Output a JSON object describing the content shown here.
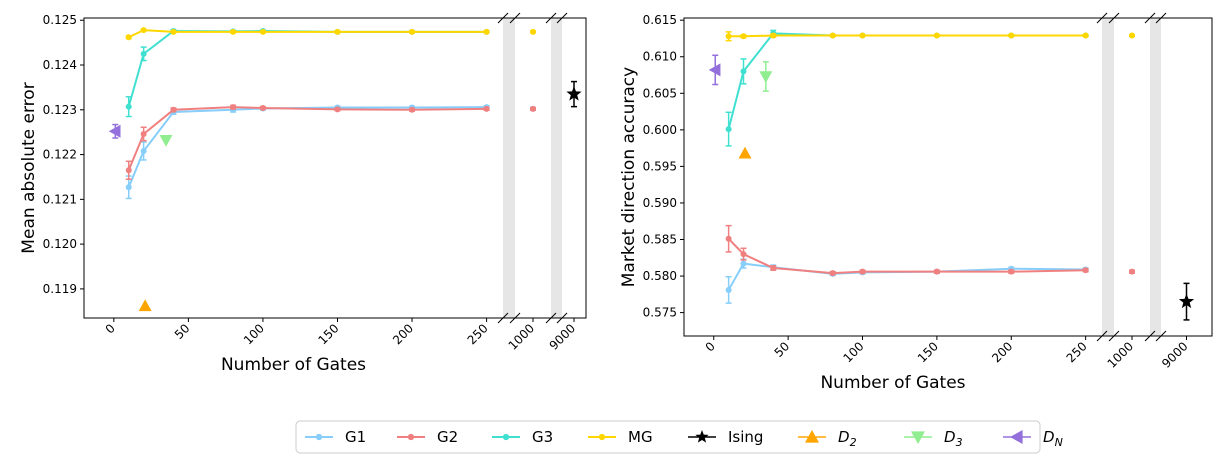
{
  "chart_data": [
    {
      "type": "line",
      "xlabel": "Number of Gates",
      "ylabel": "Mean absolute error",
      "ylim": [
        0.11835,
        0.12505
      ],
      "yticks": [
        0.119,
        0.12,
        0.121,
        0.122,
        0.123,
        0.124,
        0.125
      ],
      "ytick_labels": [
        "0.119",
        "0.120",
        "0.121",
        "0.122",
        "0.123",
        "0.124",
        "0.125"
      ],
      "xticks": [
        0,
        50,
        100,
        150,
        200,
        250
      ],
      "xtick_labels": [
        "0",
        "50",
        "100",
        "150",
        "200",
        "250"
      ],
      "broken_xtick_labels": [
        "1000",
        "9000"
      ],
      "series": [
        {
          "name": "G1",
          "x": [
            10,
            20,
            40,
            80,
            100,
            150,
            200,
            250,
            1000
          ],
          "y": [
            0.12127,
            0.12208,
            0.12295,
            0.123,
            0.12303,
            0.12305,
            0.12305,
            0.12306,
            0.12302
          ],
          "err": [
            0.00025,
            0.0002,
            5e-05,
            5e-05,
            3e-05,
            3e-05,
            3e-05,
            3e-05,
            3e-05
          ]
        },
        {
          "name": "G2",
          "x": [
            10,
            20,
            40,
            80,
            100,
            150,
            200,
            250,
            1000
          ],
          "y": [
            0.12165,
            0.12246,
            0.123,
            0.12306,
            0.12304,
            0.12301,
            0.123,
            0.12302,
            0.12302
          ],
          "err": [
            0.0002,
            0.00015,
            4e-05,
            4e-05,
            3e-05,
            3e-05,
            3e-05,
            3e-05,
            3e-05
          ]
        },
        {
          "name": "G3",
          "x": [
            10,
            20,
            40,
            80,
            100,
            150,
            200,
            250
          ],
          "y": [
            0.12307,
            0.12425,
            0.12476,
            0.12475,
            0.12476,
            0.12474,
            0.12474,
            0.12474
          ],
          "err": [
            0.00022,
            0.00015,
            3e-05,
            2e-05,
            2e-05,
            2e-05,
            2e-05,
            2e-05
          ]
        },
        {
          "name": "MG",
          "x": [
            10,
            20,
            40,
            80,
            100,
            150,
            200,
            250,
            1000
          ],
          "y": [
            0.12462,
            0.12478,
            0.12474,
            0.12474,
            0.12474,
            0.12474,
            0.12474,
            0.12474,
            0.12474
          ],
          "err": [
            3e-05,
            2e-05,
            2e-05,
            2e-05,
            2e-05,
            2e-05,
            2e-05,
            2e-05,
            2e-05
          ]
        }
      ],
      "markers": [
        {
          "name": "Ising",
          "x": 9000,
          "y": 0.12335,
          "err": 0.00028
        },
        {
          "name": "D_2",
          "x": 21,
          "y": 0.11862
        },
        {
          "name": "D_3",
          "x": 35,
          "y": 0.12232
        },
        {
          "name": "D_N",
          "x": 1,
          "y": 0.12252,
          "err": 0.00015
        }
      ]
    },
    {
      "type": "line",
      "xlabel": "Number of Gates",
      "ylabel": "Market direction accuracy",
      "ylim": [
        0.5718,
        0.6153
      ],
      "yticks": [
        0.575,
        0.58,
        0.585,
        0.59,
        0.595,
        0.6,
        0.605,
        0.61,
        0.615
      ],
      "ytick_labels": [
        "0.575",
        "0.580",
        "0.585",
        "0.590",
        "0.595",
        "0.600",
        "0.605",
        "0.610",
        "0.615"
      ],
      "xticks": [
        0,
        50,
        100,
        150,
        200,
        250
      ],
      "xtick_labels": [
        "0",
        "50",
        "100",
        "150",
        "200",
        "250"
      ],
      "broken_xtick_labels": [
        "1000",
        "9000"
      ],
      "series": [
        {
          "name": "G1",
          "x": [
            10,
            20,
            40,
            80,
            100,
            150,
            200,
            250
          ],
          "y": [
            0.5781,
            0.5817,
            0.5812,
            0.5803,
            0.5805,
            0.5806,
            0.581,
            0.5809
          ],
          "err": [
            0.0018,
            0.0006,
            0.0003,
            0.0002,
            0.0002,
            0.0002,
            0.0002,
            0.0002
          ]
        },
        {
          "name": "G2",
          "x": [
            10,
            20,
            40,
            80,
            100,
            150,
            200,
            250,
            1000
          ],
          "y": [
            0.5851,
            0.583,
            0.5811,
            0.5804,
            0.5806,
            0.5806,
            0.5806,
            0.5808,
            0.5806
          ],
          "err": [
            0.0018,
            0.0008,
            0.0003,
            0.0002,
            0.0002,
            0.0002,
            0.0002,
            0.0002,
            0.0002
          ]
        },
        {
          "name": "G3",
          "x": [
            10,
            20,
            40,
            80,
            100,
            150,
            200,
            250
          ],
          "y": [
            0.6001,
            0.608,
            0.6132,
            0.6129,
            0.6129,
            0.6129,
            0.6129,
            0.6129
          ],
          "err": [
            0.0023,
            0.0017,
            0.0004,
            0.0001,
            0.0001,
            0.0001,
            0.0001,
            0.0001
          ]
        },
        {
          "name": "MG",
          "x": [
            10,
            20,
            40,
            80,
            100,
            150,
            200,
            250,
            1000
          ],
          "y": [
            0.6128,
            0.6128,
            0.6129,
            0.6129,
            0.6129,
            0.6129,
            0.6129,
            0.6129,
            0.6129
          ],
          "err": [
            0.0006,
            0.0002,
            0.0002,
            0.0001,
            0.0001,
            0.0001,
            0.0001,
            0.0001,
            0.0001
          ]
        }
      ],
      "markers": [
        {
          "name": "Ising",
          "x": 9000,
          "y": 0.5765,
          "err": 0.0025
        },
        {
          "name": "D_2",
          "x": 21,
          "y": 0.5968
        },
        {
          "name": "D_3",
          "x": 35,
          "y": 0.6073,
          "err": 0.002
        },
        {
          "name": "D_N",
          "x": 1,
          "y": 0.6082,
          "err": 0.002
        }
      ]
    }
  ],
  "legend": {
    "placement": "bottom-center",
    "entries": [
      {
        "label": "G1",
        "color": "#87CEFA",
        "marker": "circle"
      },
      {
        "label": "G2",
        "color": "#F08080",
        "marker": "circle"
      },
      {
        "label": "G3",
        "color": "#40E0D0",
        "marker": "circle"
      },
      {
        "label": "MG",
        "color": "#FFD700",
        "marker": "circle"
      },
      {
        "label": "Ising",
        "color": "#000000",
        "marker": "star"
      },
      {
        "label": "D",
        "sub": "2",
        "color": "#FFA500",
        "marker": "triangle-up"
      },
      {
        "label": "D",
        "sub": "3",
        "color": "#90EE90",
        "marker": "triangle-down"
      },
      {
        "label": "D",
        "sub": "N",
        "color": "#9370DB",
        "marker": "triangle-left"
      }
    ]
  },
  "colors": {
    "G1": "#87CEFA",
    "G2": "#F08080",
    "G3": "#40E0D0",
    "MG": "#FFD700",
    "Ising": "#000000",
    "D_2": "#FFA500",
    "D_3": "#90EE90",
    "D_N": "#9370DB",
    "break_band": "#E6E6E6"
  }
}
